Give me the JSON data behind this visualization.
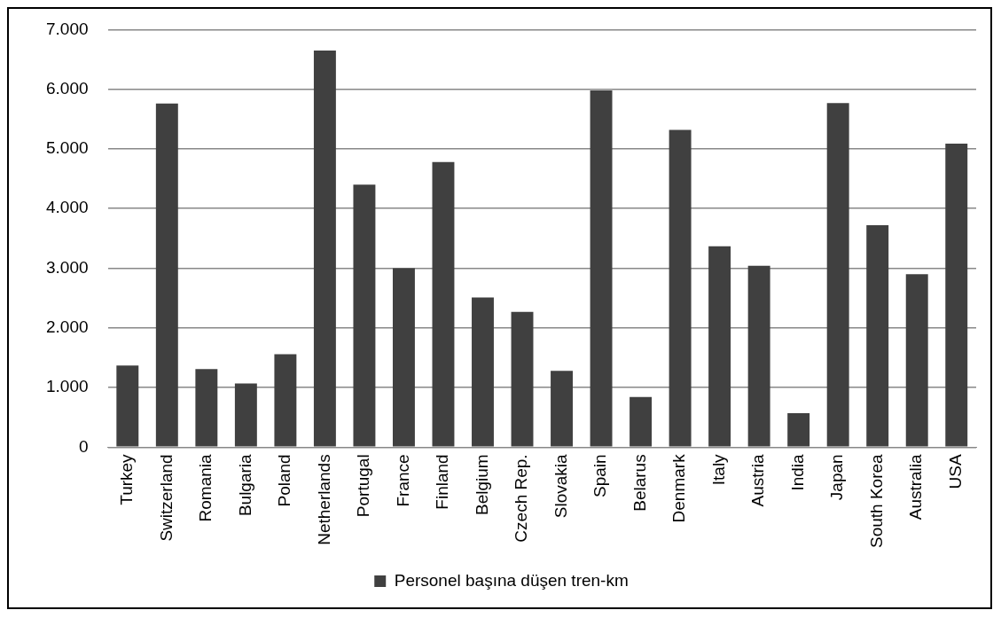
{
  "chart_data": {
    "type": "bar",
    "categories": [
      "Turkey",
      "Switzerland",
      "Romania",
      "Bulgaria",
      "Poland",
      "Netherlands",
      "Portugal",
      "France",
      "Finland",
      "Belgium",
      "Czech Rep.",
      "Slovakia",
      "Spain",
      "Belarus",
      "Denmark",
      "Italy",
      "Austria",
      "India",
      "Japan",
      "South Korea",
      "Australia",
      "USA"
    ],
    "series": [
      {
        "name": "Personel başına düşen tren-km",
        "color": "#404040",
        "values": [
          1370,
          5760,
          1310,
          1070,
          1560,
          6650,
          4400,
          3000,
          4780,
          2510,
          2270,
          1280,
          5980,
          840,
          5320,
          3370,
          3040,
          570,
          5770,
          3720,
          2900,
          5090
        ]
      }
    ],
    "ylim": [
      0,
      7000
    ],
    "yticks": [
      0,
      {
        "value": 1000,
        "label": "1.000"
      },
      {
        "value": 2000,
        "label": "2.000"
      },
      {
        "value": 3000,
        "label": "3.000"
      },
      {
        "value": 4000,
        "label": "4.000"
      },
      {
        "value": 5000,
        "label": "5.000"
      },
      {
        "value": 6000,
        "label": "6.000"
      },
      {
        "value": 7000,
        "label": "7.000"
      }
    ],
    "grid": "y",
    "legend": "bottom"
  }
}
